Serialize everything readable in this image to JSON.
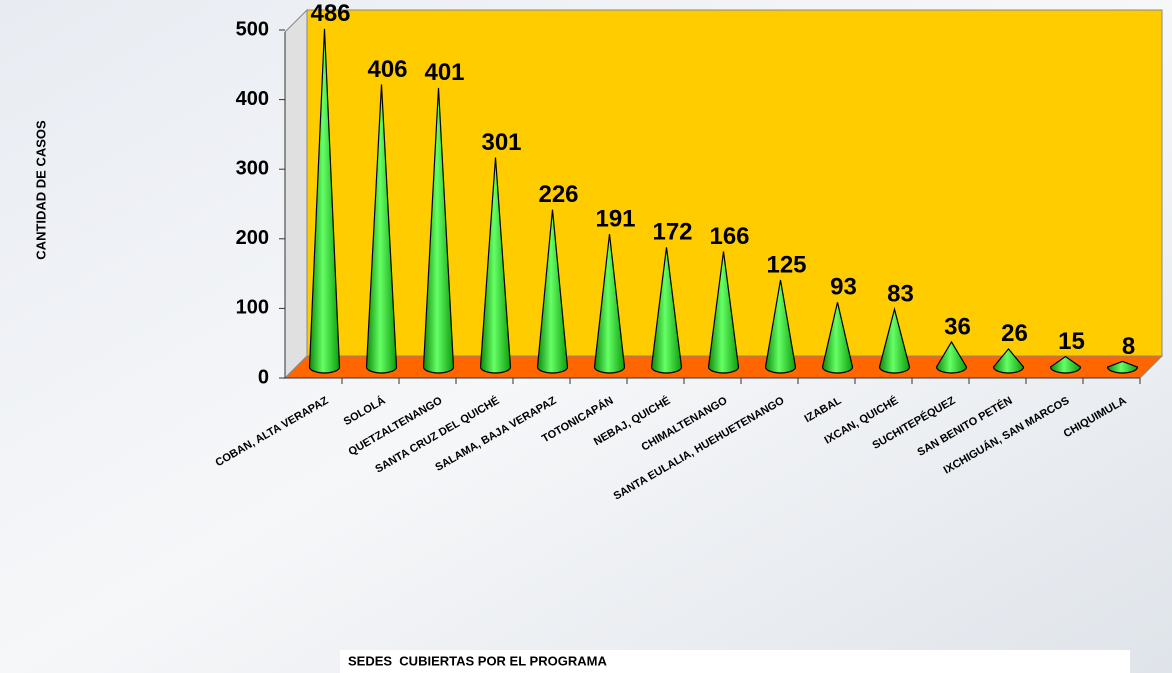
{
  "chart_data": {
    "type": "bar",
    "style": "cone",
    "y_label": "CANTIDAD DE CASOS",
    "x_label": "SEDES  CUBIERTAS POR EL PROGRAMA",
    "categories": [
      "COBAN, ALTA VERAPAZ",
      "SOLOLÁ",
      "QUETZALTENANGO",
      "SANTA CRUZ DEL QUICHÉ",
      "SALAMA, BAJA VERAPAZ",
      "TOTONICAPÁN",
      "NEBAJ, QUICHÉ",
      "CHIMALTENANGO",
      "SANTA EULALIA, HUEHUETENANGO",
      "IZABAL",
      "IXCAN, QUICHÉ",
      "SUCHITEPÉQUEZ",
      "SAN BENITO PETÉN",
      "IXCHIGUÁN, SAN MARCOS",
      "CHIQUIMULA"
    ],
    "values": [
      486,
      406,
      401,
      301,
      226,
      191,
      172,
      166,
      125,
      93,
      83,
      36,
      26,
      15,
      8
    ],
    "color": "#22dd22",
    "wall_color": "#ffcc00",
    "floor_color": "#ff6600",
    "ylim": [
      0,
      500
    ],
    "yticks": [
      0,
      100,
      200,
      300,
      400,
      500
    ],
    "grid": false
  }
}
